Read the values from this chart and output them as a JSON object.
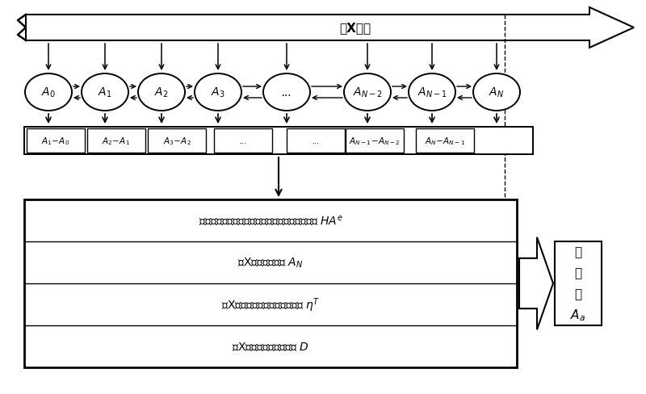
{
  "bg_color": "#ffffff",
  "circle_labels": [
    "$A_0$",
    "$A_1$",
    "$A_2$",
    "$A_3$",
    "...",
    "$A_{N-2}$",
    "$A_{N-1}$",
    "$A_N$"
  ],
  "diff_labels": [
    "$A_1\\!-\\!A_0$",
    "$A_2\\!-\\!A_1$",
    "$A_3\\!-\\!A_2$",
    "...",
    "...",
    "$A_{N-1}\\!-\\!A_{N-2}$",
    "$A_N\\!-\\!A_{N-1}$"
  ],
  "box1_text": "通过相邻背景场的差値计算背景误差协方差矩阵 $HA^e$",
  "box2_text": "第X时刻的背景场 $A_N$",
  "box3_text": "第X时刻的观测误差协方差矩阵 $\\eta^T$",
  "box4_text": "第X时刻的海流观测矩阵 $D$",
  "time_arrow_text": "第X时刻",
  "out_line1": "分",
  "out_line2": "析",
  "out_line3": "场",
  "out_line4": "$A_a$"
}
